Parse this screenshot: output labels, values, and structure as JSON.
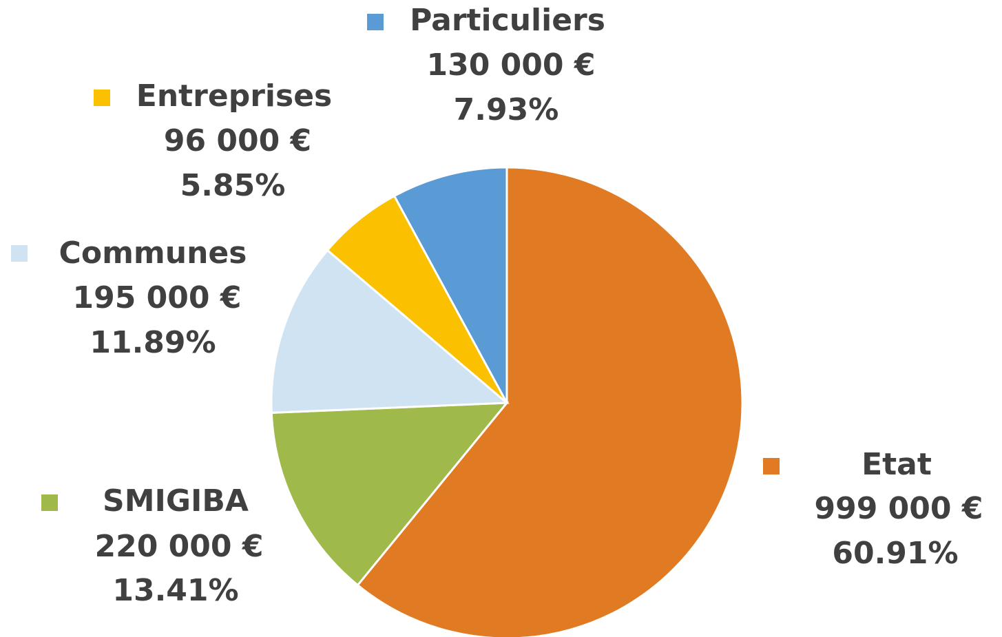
{
  "chart_data": {
    "type": "pie",
    "categories": [
      "Etat",
      "SMIGIBA",
      "Communes",
      "Entreprises",
      "Particuliers"
    ],
    "values": [
      999000,
      220000,
      195000,
      96000,
      130000
    ],
    "value_labels": [
      "999 000 €",
      "220 000 €",
      "195 000 €",
      "96 000 €",
      "130 000 €"
    ],
    "percentages": [
      60.91,
      13.41,
      11.89,
      5.85,
      7.93
    ],
    "percentage_labels": [
      "60.91%",
      "13.41%",
      "11.89%",
      "5.85%",
      "7.93%"
    ],
    "colors": [
      "#E07B24",
      "#9FBA4A",
      "#CFE3F2",
      "#FBC000",
      "#5B9BD5"
    ]
  }
}
